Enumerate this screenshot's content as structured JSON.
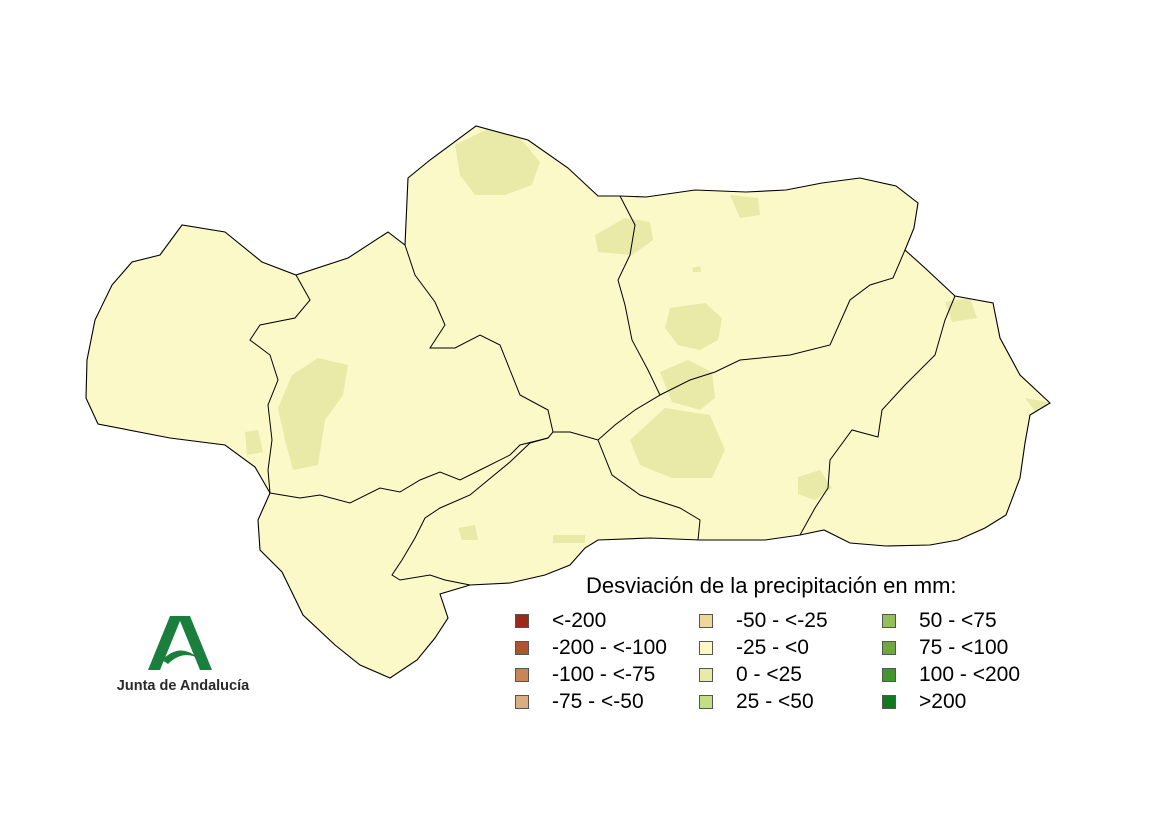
{
  "legend": {
    "title": "Desviación de la precipitación en mm:",
    "columns": [
      [
        {
          "label": "<-200",
          "color": "#9b2a1c"
        },
        {
          "label": "-200 - <-100",
          "color": "#ad5530"
        },
        {
          "label": "-100 - <-75",
          "color": "#c68658"
        },
        {
          "label": "-75 - <-50",
          "color": "#d9ae80"
        }
      ],
      [
        {
          "label": "-50 - <-25",
          "color": "#efd79b"
        },
        {
          "label": "-25 - <0",
          "color": "#fbf9c8"
        },
        {
          "label": "0 - <25",
          "color": "#e9eaa7"
        },
        {
          "label": "25 - <50",
          "color": "#c6dd88"
        }
      ],
      [
        {
          "label": "50 - <75",
          "color": "#93c05b"
        },
        {
          "label": "75 - <100",
          "color": "#6ea93f"
        },
        {
          "label": "100 - <200",
          "color": "#43962c"
        },
        {
          "label": ">200",
          "color": "#107a1f"
        }
      ]
    ]
  },
  "map": {
    "base_class": "-25 - <0",
    "patch_class": "0 - <25",
    "base_color": "#fbf9c8",
    "patch_color": "#e9eaa7",
    "border_color": "#000000"
  },
  "logo": {
    "text": "Junta de Andalucía",
    "color": "#1a7f3c"
  }
}
